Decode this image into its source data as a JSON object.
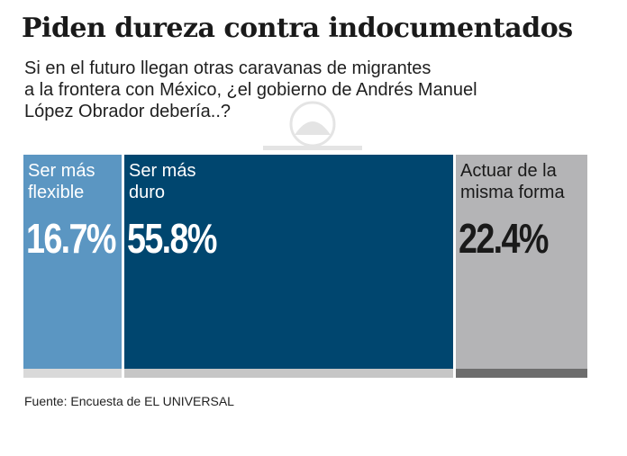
{
  "title": "Piden dureza contra indocumentados",
  "subtitle_lines": [
    "Si en el futuro llegan otras caravanas de migrantes",
    "a la frontera con México, ¿el gobierno de Andrés Manuel",
    "López Obrador debería..?"
  ],
  "source": "Fuente: Encuesta de EL UNIVERSAL",
  "chart_data": {
    "type": "bar",
    "layout": "proportional-area",
    "categories": [
      "Ser más flexible",
      "Ser más duro",
      "Actuar de la misma forma"
    ],
    "category_lines": [
      [
        "Ser más",
        "flexible"
      ],
      [
        "Ser más",
        "duro"
      ],
      [
        "Actuar de la",
        "misma forma"
      ]
    ],
    "values": [
      16.7,
      55.8,
      22.4
    ],
    "value_labels": [
      "16.7%",
      "55.8%",
      "22.4%"
    ],
    "unit": "%",
    "colors": [
      "#5b96c2",
      "#00466f",
      "#b4b4b6"
    ],
    "strip_colors": [
      "#d9d9d9",
      "#c6c6c6",
      "#6d6d6d"
    ],
    "text_colors": [
      "#ffffff",
      "#ffffff",
      "#1a1a1a"
    ],
    "legend": "none",
    "grid": false
  }
}
